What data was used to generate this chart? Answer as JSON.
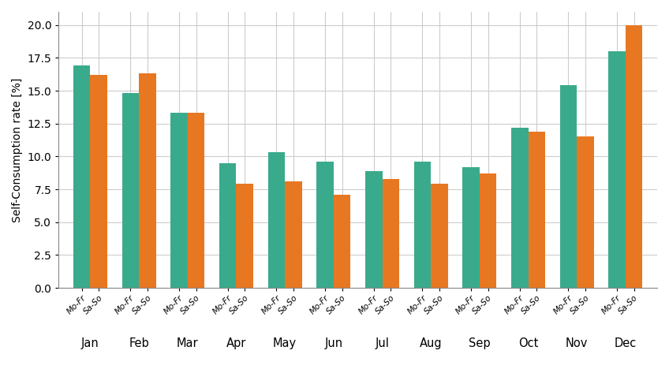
{
  "months": [
    "Jan",
    "Feb",
    "Mar",
    "Apr",
    "May",
    "Jun",
    "Jul",
    "Aug",
    "Sep",
    "Oct",
    "Nov",
    "Dec"
  ],
  "mo_fr": [
    16.9,
    14.8,
    13.3,
    9.5,
    10.3,
    9.6,
    8.9,
    9.6,
    9.2,
    12.2,
    15.4,
    18.0
  ],
  "sa_so": [
    16.2,
    16.3,
    13.3,
    7.9,
    8.1,
    7.1,
    8.3,
    7.9,
    8.7,
    11.9,
    11.5,
    20.0
  ],
  "color_mo_fr": "#3aaa8c",
  "color_sa_so": "#e87722",
  "ylabel": "Self-Consumption rate [%]",
  "ylim": [
    0,
    21
  ],
  "yticks": [
    0.0,
    2.5,
    5.0,
    7.5,
    10.0,
    12.5,
    15.0,
    17.5,
    20.0
  ],
  "bar_width": 0.35,
  "tick_label_mo_fr": "Mo-Fr",
  "tick_label_sa_so": "Sa-So",
  "background_color": "#ffffff",
  "grid_color": "#cccccc",
  "figsize": [
    8.48,
    4.87
  ],
  "dpi": 100
}
